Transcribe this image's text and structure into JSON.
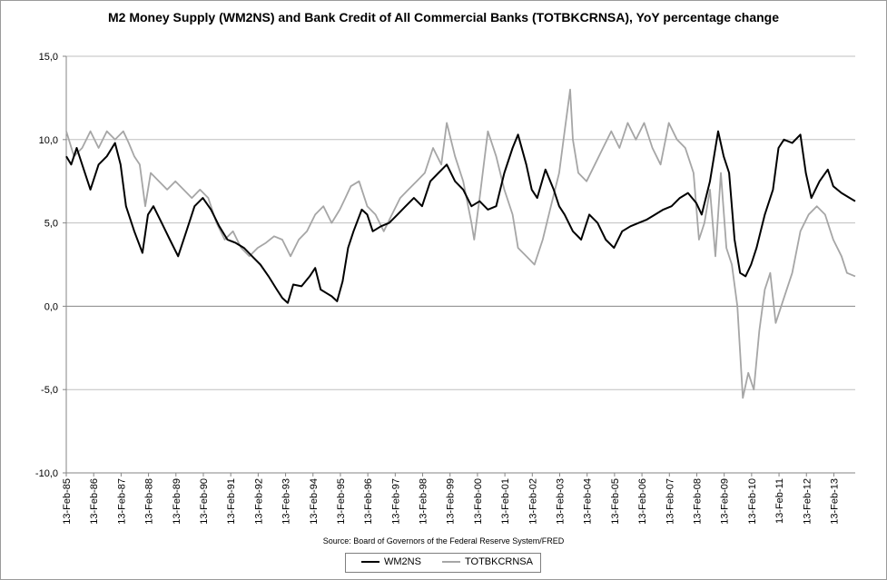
{
  "colors": {
    "wm2ns": "#000000",
    "totbkcrnsa": "#a6a6a6",
    "grid": "#bfbfbf",
    "axis": "#868686"
  },
  "chart_data": {
    "type": "line",
    "title": "M2 Money Supply (WM2NS) and Bank Credit of All Commercial Banks (TOTBKCRNSA), YoY percentage change",
    "source": "Source: Board of Governors of the Federal Reserve System/FRED",
    "xlabel": "",
    "ylabel": "",
    "ylim": [
      -10,
      15
    ],
    "yticks": [
      -10,
      -5,
      0,
      5,
      10,
      15
    ],
    "ytick_labels": [
      "-10,0",
      "-5,0",
      "0,0",
      "5,0",
      "10,0",
      "15,0"
    ],
    "xlim": [
      1985.12,
      2013.9
    ],
    "x_tick_labels": [
      "13-Feb-85",
      "13-Feb-86",
      "13-Feb-87",
      "13-Feb-88",
      "13-Feb-89",
      "13-Feb-90",
      "13-Feb-91",
      "13-Feb-92",
      "13-Feb-93",
      "13-Feb-94",
      "13-Feb-95",
      "13-Feb-96",
      "13-Feb-97",
      "13-Feb-98",
      "13-Feb-99",
      "13-Feb-00",
      "13-Feb-01",
      "13-Feb-02",
      "13-Feb-03",
      "13-Feb-04",
      "13-Feb-05",
      "13-Feb-06",
      "13-Feb-07",
      "13-Feb-08",
      "13-Feb-09",
      "13-Feb-10",
      "13-Feb-11",
      "13-Feb-12",
      "13-Feb-13"
    ],
    "legend_position": "bottom",
    "grid": true,
    "series": [
      {
        "name": "WM2NS",
        "x": [
          1985.12,
          1985.3,
          1985.5,
          1985.7,
          1986.0,
          1986.3,
          1986.6,
          1986.9,
          1987.1,
          1987.3,
          1987.6,
          1987.9,
          1988.1,
          1988.3,
          1988.6,
          1988.9,
          1989.2,
          1989.5,
          1989.8,
          1990.1,
          1990.4,
          1990.7,
          1991.0,
          1991.3,
          1991.6,
          1991.9,
          1992.2,
          1992.5,
          1992.8,
          1993.0,
          1993.2,
          1993.4,
          1993.7,
          1994.0,
          1994.2,
          1994.4,
          1994.6,
          1994.8,
          1995.0,
          1995.2,
          1995.4,
          1995.6,
          1995.9,
          1996.1,
          1996.3,
          1996.6,
          1996.9,
          1997.2,
          1997.5,
          1997.8,
          1998.1,
          1998.4,
          1998.7,
          1999.0,
          1999.3,
          1999.6,
          1999.9,
          2000.2,
          2000.5,
          2000.8,
          2001.1,
          2001.4,
          2001.6,
          2001.9,
          2002.1,
          2002.3,
          2002.6,
          2002.9,
          2003.1,
          2003.3,
          2003.6,
          2003.9,
          2004.2,
          2004.5,
          2004.8,
          2005.1,
          2005.4,
          2005.7,
          2006.0,
          2006.3,
          2006.6,
          2006.9,
          2007.2,
          2007.5,
          2007.8,
          2008.1,
          2008.3,
          2008.6,
          2008.9,
          2009.1,
          2009.3,
          2009.5,
          2009.7,
          2009.9,
          2010.1,
          2010.3,
          2010.6,
          2010.9,
          2011.1,
          2011.3,
          2011.6,
          2011.9,
          2012.1,
          2012.3,
          2012.6,
          2012.9,
          2013.1,
          2013.4,
          2013.7,
          2013.9
        ],
        "values": [
          9.0,
          8.5,
          9.5,
          8.5,
          7.0,
          8.5,
          9.0,
          9.8,
          8.5,
          6.0,
          4.5,
          3.2,
          5.5,
          6.0,
          5.0,
          4.0,
          3.0,
          4.5,
          6.0,
          6.5,
          5.8,
          4.8,
          4.0,
          3.8,
          3.5,
          3.0,
          2.5,
          1.8,
          1.0,
          0.5,
          0.2,
          1.3,
          1.2,
          1.8,
          2.3,
          1.0,
          0.8,
          0.6,
          0.3,
          1.5,
          3.5,
          4.5,
          5.8,
          5.5,
          4.5,
          4.8,
          5.0,
          5.5,
          6.0,
          6.5,
          6.0,
          7.5,
          8.0,
          8.5,
          7.5,
          7.0,
          6.0,
          6.3,
          5.8,
          6.0,
          8.0,
          9.5,
          10.3,
          8.5,
          7.0,
          6.5,
          8.2,
          7.0,
          6.0,
          5.5,
          4.5,
          4.0,
          5.5,
          5.0,
          4.0,
          3.5,
          4.5,
          4.8,
          5.0,
          5.2,
          5.5,
          5.8,
          6.0,
          6.5,
          6.8,
          6.2,
          5.5,
          7.5,
          10.5,
          9.0,
          8.0,
          4.0,
          2.0,
          1.8,
          2.5,
          3.5,
          5.5,
          7.0,
          9.5,
          10.0,
          9.8,
          10.3,
          8.0,
          6.5,
          7.5,
          8.2,
          7.2,
          6.8,
          6.5,
          6.3
        ]
      },
      {
        "name": "TOTBKCRNSA",
        "x": [
          1985.12,
          1985.4,
          1985.7,
          1986.0,
          1986.3,
          1986.6,
          1986.9,
          1987.2,
          1987.4,
          1987.6,
          1987.8,
          1988.0,
          1988.2,
          1988.5,
          1988.8,
          1989.1,
          1989.4,
          1989.7,
          1990.0,
          1990.3,
          1990.6,
          1990.9,
          1991.2,
          1991.5,
          1991.8,
          1992.1,
          1992.4,
          1992.7,
          1993.0,
          1993.3,
          1993.6,
          1993.9,
          1994.2,
          1994.5,
          1994.8,
          1995.1,
          1995.3,
          1995.5,
          1995.8,
          1996.1,
          1996.4,
          1996.7,
          1997.0,
          1997.3,
          1997.6,
          1997.9,
          1998.2,
          1998.5,
          1998.8,
          1999.0,
          1999.3,
          1999.6,
          1999.9,
          2000.0,
          2000.2,
          2000.5,
          2000.8,
          2001.1,
          2001.4,
          2001.6,
          2001.9,
          2002.2,
          2002.5,
          2002.8,
          2003.1,
          2003.3,
          2003.5,
          2003.6,
          2003.8,
          2004.1,
          2004.4,
          2004.7,
          2005.0,
          2005.3,
          2005.6,
          2005.9,
          2006.2,
          2006.5,
          2006.8,
          2007.1,
          2007.4,
          2007.7,
          2008.0,
          2008.2,
          2008.4,
          2008.6,
          2008.8,
          2009.0,
          2009.2,
          2009.4,
          2009.6,
          2009.8,
          2010.0,
          2010.2,
          2010.4,
          2010.6,
          2010.8,
          2011.0,
          2011.3,
          2011.6,
          2011.9,
          2012.2,
          2012.5,
          2012.8,
          2013.1,
          2013.4,
          2013.6,
          2013.9
        ],
        "values": [
          10.5,
          9.0,
          9.5,
          10.5,
          9.5,
          10.5,
          10.0,
          10.5,
          9.8,
          9.0,
          8.5,
          6.0,
          8.0,
          7.5,
          7.0,
          7.5,
          7.0,
          6.5,
          7.0,
          6.5,
          5.0,
          4.0,
          4.5,
          3.5,
          3.0,
          3.5,
          3.8,
          4.2,
          4.0,
          3.0,
          4.0,
          4.5,
          5.5,
          6.0,
          5.0,
          5.8,
          6.5,
          7.2,
          7.5,
          6.0,
          5.5,
          4.5,
          5.5,
          6.5,
          7.0,
          7.5,
          8.0,
          9.5,
          8.5,
          11.0,
          9.0,
          7.5,
          5.0,
          4.0,
          6.5,
          10.5,
          9.0,
          7.0,
          5.5,
          3.5,
          3.0,
          2.5,
          4.0,
          6.0,
          8.0,
          10.5,
          13.0,
          10.0,
          8.0,
          7.5,
          8.5,
          9.5,
          10.5,
          9.5,
          11.0,
          10.0,
          11.0,
          9.5,
          8.5,
          11.0,
          10.0,
          9.5,
          8.0,
          4.0,
          5.0,
          7.0,
          3.0,
          8.0,
          3.5,
          2.5,
          0.0,
          -5.5,
          -4.0,
          -5.0,
          -1.5,
          1.0,
          2.0,
          -1.0,
          0.5,
          2.0,
          4.5,
          5.5,
          6.0,
          5.5,
          4.0,
          3.0,
          2.0,
          1.8
        ]
      }
    ]
  }
}
